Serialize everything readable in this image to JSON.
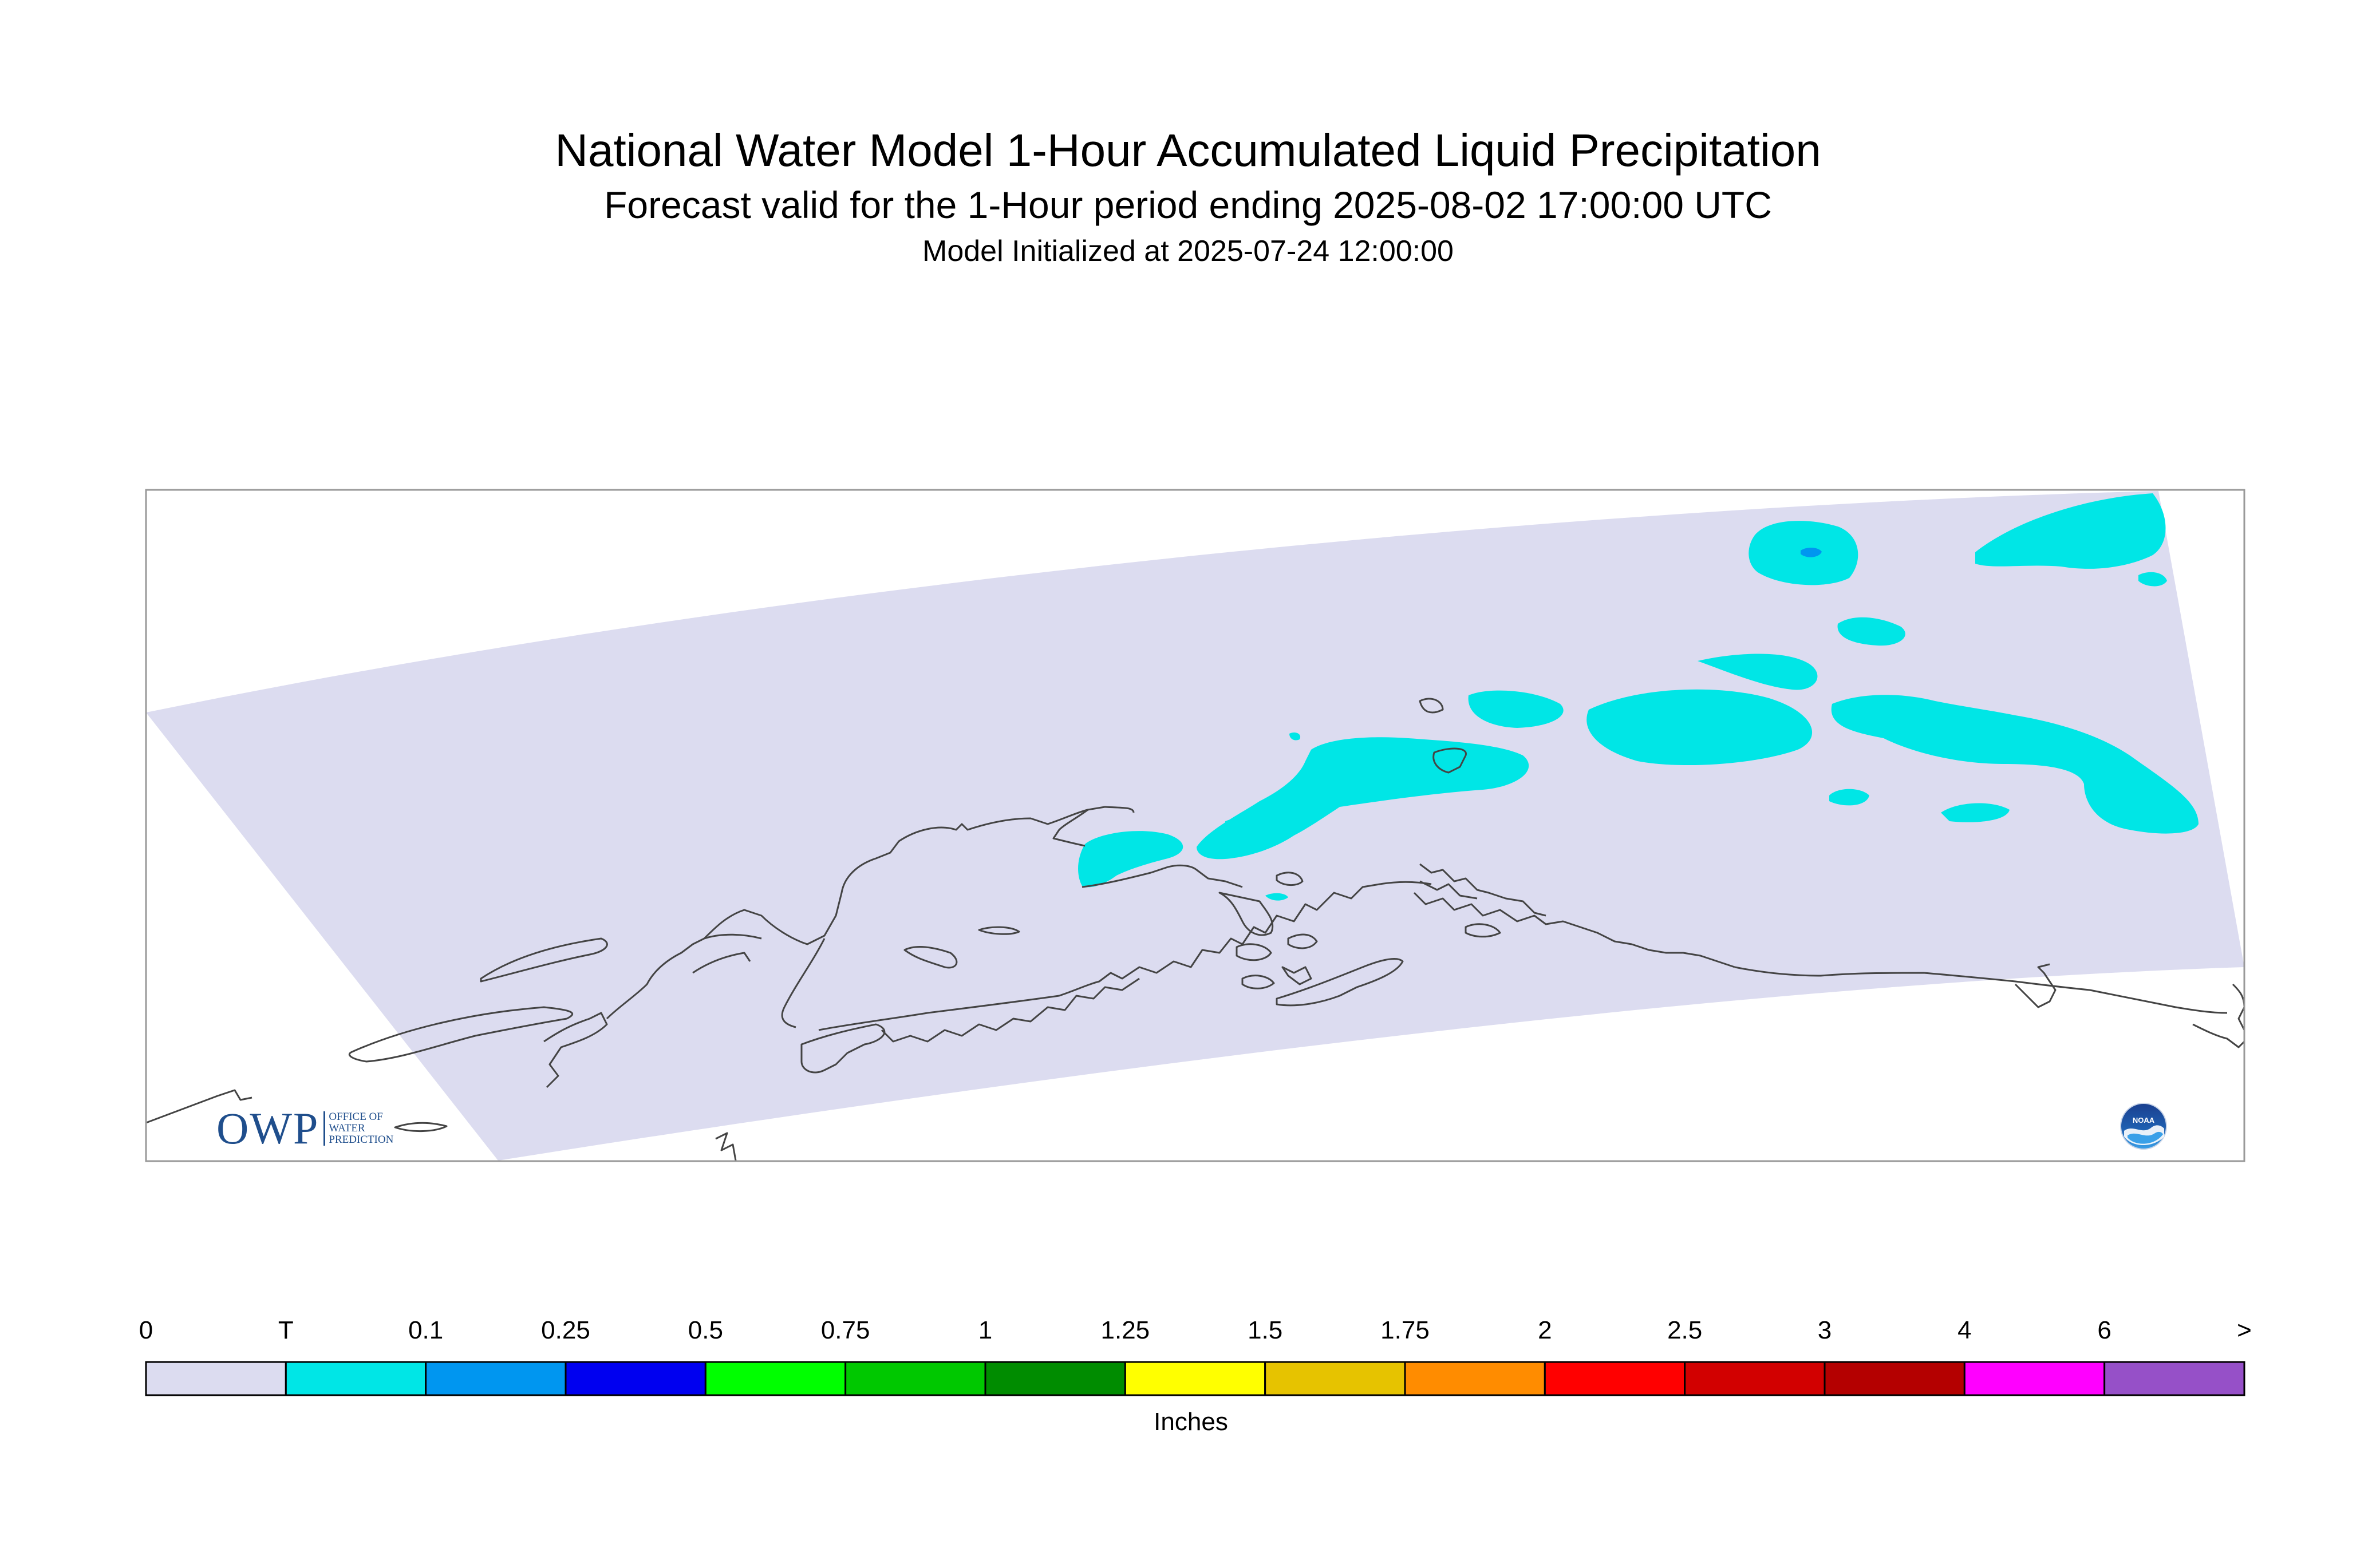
{
  "title": "National Water Model 1-Hour Accumulated Liquid Precipitation",
  "subtitle": "Forecast valid for the 1-Hour period ending 2025-08-02 17:00:00 UTC",
  "initialized": "Model Initialized at 2025-07-24 12:00:00",
  "colors": {
    "domain": "#dcdcf0",
    "trace": "#00e6e6",
    "coastline": "#444444",
    "frame": "#999999"
  },
  "legend": {
    "units": "Inches",
    "labels": [
      "0",
      "T",
      "0.1",
      "0.25",
      "0.5",
      "0.75",
      "1",
      "1.25",
      "1.5",
      "1.75",
      "2",
      "2.5",
      "3",
      "4",
      "6",
      ">"
    ],
    "colors": [
      "#dcdcf0",
      "#00e6e6",
      "#0096f0",
      "#0000f0",
      "#00ff00",
      "#00c800",
      "#008c00",
      "#ffff00",
      "#e6c300",
      "#ff8c00",
      "#ff0000",
      "#d20000",
      "#b40000",
      "#ff00ff",
      "#9650c8"
    ]
  },
  "logos": {
    "owp_mark": "OWP",
    "owp_lines": [
      "OFFICE OF",
      "WATER",
      "PREDICTION"
    ],
    "noaa_text": "NOAA"
  }
}
